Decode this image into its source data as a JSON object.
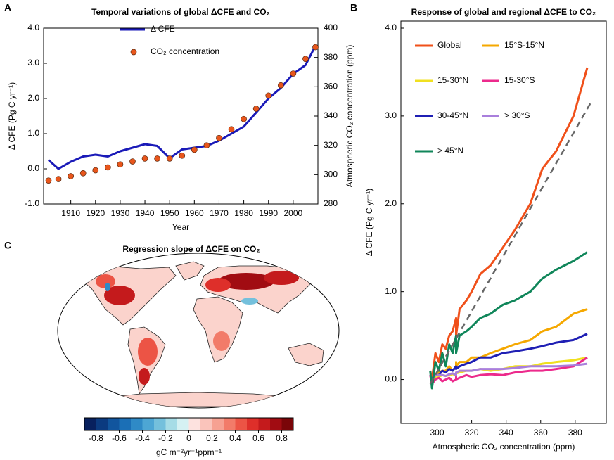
{
  "chart_data": [
    {
      "type": "line",
      "panel": "A",
      "title": "Temporal variations of global ΔCFE and CO₂",
      "xlabel": "Year",
      "ylabel": "Δ CFE (Pg C yr⁻¹)",
      "y2label": "Atmospheric CO₂ concentration (ppm)",
      "x": [
        1901,
        1905,
        1910,
        1915,
        1920,
        1925,
        1930,
        1935,
        1940,
        1945,
        1950,
        1955,
        1960,
        1965,
        1970,
        1975,
        1980,
        1985,
        1990,
        1995,
        2000,
        2005,
        2009
      ],
      "xlim": [
        1899,
        2010
      ],
      "xticks": [
        1910,
        1920,
        1930,
        1940,
        1950,
        1960,
        1970,
        1980,
        1990,
        2000
      ],
      "ylim": [
        -1,
        4
      ],
      "yticks": [
        {
          "value": -1,
          "label": "-1.0"
        },
        {
          "value": 0,
          "label": "0.0"
        },
        {
          "value": 1,
          "label": "1.0"
        },
        {
          "value": 2,
          "label": "2.0"
        },
        {
          "value": 3,
          "label": "3.0"
        },
        {
          "value": 4,
          "label": "4.0"
        }
      ],
      "y2lim": [
        280,
        400
      ],
      "y2ticks": [
        280,
        300,
        320,
        340,
        360,
        380,
        400
      ],
      "series": [
        {
          "name": "Δ CFE",
          "type": "line",
          "color": "#1a1ab8",
          "values": [
            0.25,
            0.0,
            0.2,
            0.35,
            0.4,
            0.35,
            0.5,
            0.6,
            0.7,
            0.65,
            0.3,
            0.55,
            0.6,
            0.65,
            0.8,
            1.0,
            1.2,
            1.6,
            2.0,
            2.3,
            2.7,
            2.95,
            3.5
          ]
        },
        {
          "name": "CO₂ concentration",
          "type": "scatter",
          "axis": "y2",
          "color": "#e8561c",
          "values": [
            296,
            297,
            299,
            301,
            303,
            305,
            307,
            309,
            311,
            311,
            311,
            313,
            317,
            320,
            325,
            331,
            338,
            345,
            354,
            361,
            369,
            379,
            387
          ]
        }
      ]
    },
    {
      "type": "line",
      "panel": "B",
      "title": "Response of global and regional ΔCFE to CO₂",
      "xlabel": "Atmospheric CO₂ concentration (ppm)",
      "ylabel": "Δ CFE (Pg C yr⁻¹)",
      "x": [
        296,
        297,
        299,
        301,
        303,
        305,
        307,
        309,
        311,
        311,
        311,
        313,
        317,
        320,
        325,
        331,
        338,
        345,
        354,
        361,
        369,
        379,
        387
      ],
      "xlim": [
        279,
        398
      ],
      "xticks": [
        300,
        320,
        340,
        360,
        380
      ],
      "ylim": [
        -0.5,
        4.08
      ],
      "yticks": [
        {
          "value": 0,
          "label": "0.0"
        },
        {
          "value": 1,
          "label": "1.0"
        },
        {
          "value": 2,
          "label": "2.0"
        },
        {
          "value": 3,
          "label": "3.0"
        },
        {
          "value": 4,
          "label": "4.0"
        }
      ],
      "series": [
        {
          "name": "Global",
          "color": "#f0501a",
          "values": [
            0.1,
            0.0,
            0.3,
            0.2,
            0.4,
            0.35,
            0.5,
            0.55,
            0.7,
            0.6,
            0.5,
            0.8,
            0.9,
            1.0,
            1.2,
            1.3,
            1.5,
            1.7,
            2.0,
            2.4,
            2.6,
            3.0,
            3.55
          ]
        },
        {
          "name": "15°S-15°N",
          "color": "#f5a800",
          "values": [
            0.05,
            0.0,
            0.05,
            0.08,
            0.1,
            0.1,
            0.15,
            0.1,
            0.15,
            0.2,
            0.15,
            0.2,
            0.2,
            0.25,
            0.25,
            0.3,
            0.35,
            0.4,
            0.45,
            0.55,
            0.6,
            0.75,
            0.8
          ]
        },
        {
          "name": "15-30°N",
          "color": "#f0e020",
          "values": [
            0.0,
            0.0,
            0.02,
            0.03,
            0.05,
            0.04,
            0.05,
            0.06,
            0.05,
            0.08,
            0.07,
            0.08,
            0.1,
            0.1,
            0.12,
            0.1,
            0.12,
            0.15,
            0.15,
            0.18,
            0.2,
            0.22,
            0.25
          ]
        },
        {
          "name": "15-30°S",
          "color": "#ec2a8c",
          "values": [
            0.05,
            -0.05,
            0.0,
            0.02,
            -0.02,
            0.0,
            0.02,
            -0.02,
            0.0,
            0.03,
            0.0,
            0.02,
            0.05,
            0.03,
            0.05,
            0.06,
            0.05,
            0.08,
            0.1,
            0.1,
            0.12,
            0.15,
            0.25
          ]
        },
        {
          "name": "30-45°N",
          "color": "#1f1fb4",
          "values": [
            0.05,
            0.0,
            0.05,
            0.05,
            0.1,
            0.08,
            0.12,
            0.1,
            0.15,
            0.15,
            0.12,
            0.15,
            0.18,
            0.2,
            0.25,
            0.25,
            0.3,
            0.32,
            0.35,
            0.38,
            0.42,
            0.45,
            0.52
          ]
        },
        {
          "name": "> 30°S",
          "color": "#a97fdc",
          "values": [
            0.0,
            0.0,
            0.05,
            0.05,
            0.05,
            0.04,
            0.06,
            0.07,
            0.05,
            0.08,
            0.07,
            0.1,
            0.1,
            0.1,
            0.12,
            0.12,
            0.12,
            0.13,
            0.15,
            0.15,
            0.15,
            0.16,
            0.18
          ]
        },
        {
          "name": "> 45°N",
          "color": "#10865a",
          "values": [
            0.1,
            -0.1,
            0.2,
            0.1,
            0.3,
            0.15,
            0.4,
            0.3,
            0.5,
            0.45,
            0.3,
            0.5,
            0.55,
            0.6,
            0.7,
            0.75,
            0.85,
            0.9,
            1.0,
            1.15,
            1.25,
            1.35,
            1.45
          ]
        },
        {
          "color": "#666666",
          "dash": true,
          "x": [
            296,
            389
          ],
          "values": [
            -0.05,
            3.15
          ]
        }
      ]
    },
    {
      "type": "colorbar",
      "panel": "C",
      "title": "Regression slope of ΔCFE on CO₂",
      "xlabel": "gC m⁻²yr⁻¹ppm⁻¹",
      "xlim": [
        -0.9,
        0.9
      ],
      "xticks": [
        -0.8,
        -0.6,
        -0.4,
        -0.2,
        0,
        0.2,
        0.4,
        0.6,
        0.8
      ],
      "colors": [
        "#08205e",
        "#0b3a80",
        "#11559e",
        "#1b6fb6",
        "#2f8ac6",
        "#4da6d4",
        "#74c0dc",
        "#a6dce6",
        "#d5f1f3",
        "#fde2df",
        "#fac4bb",
        "#f6a192",
        "#f27b69",
        "#ec5445",
        "#de2f2a",
        "#c41a1c",
        "#a10c12",
        "#7a0508"
      ]
    }
  ]
}
